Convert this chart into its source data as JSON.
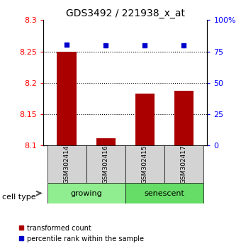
{
  "title": "GDS3492 / 221938_x_at",
  "samples": [
    "GSM302414",
    "GSM302416",
    "GSM302415",
    "GSM302417"
  ],
  "red_values": [
    8.25,
    8.112,
    8.183,
    8.187
  ],
  "blue_values": [
    80.5,
    80.0,
    80.0,
    80.0
  ],
  "ylim_left": [
    8.1,
    8.3
  ],
  "ylim_right": [
    0,
    100
  ],
  "yticks_left": [
    8.1,
    8.15,
    8.2,
    8.25,
    8.3
  ],
  "yticks_right": [
    0,
    25,
    50,
    75,
    100
  ],
  "ytick_labels_right": [
    "0",
    "25",
    "50",
    "75",
    "100%"
  ],
  "groups": [
    {
      "label": "growing",
      "indices": [
        0,
        1
      ],
      "color": "#90ee90"
    },
    {
      "label": "senescent",
      "indices": [
        2,
        3
      ],
      "color": "#66dd66"
    }
  ],
  "bar_color": "#aa0000",
  "dot_color": "#0000cc",
  "bar_width": 0.5,
  "bar_bottom": 8.1,
  "cell_type_label": "cell type",
  "legend_red": "transformed count",
  "legend_blue": "percentile rank within the sample",
  "bg_color_sample": "#d3d3d3"
}
